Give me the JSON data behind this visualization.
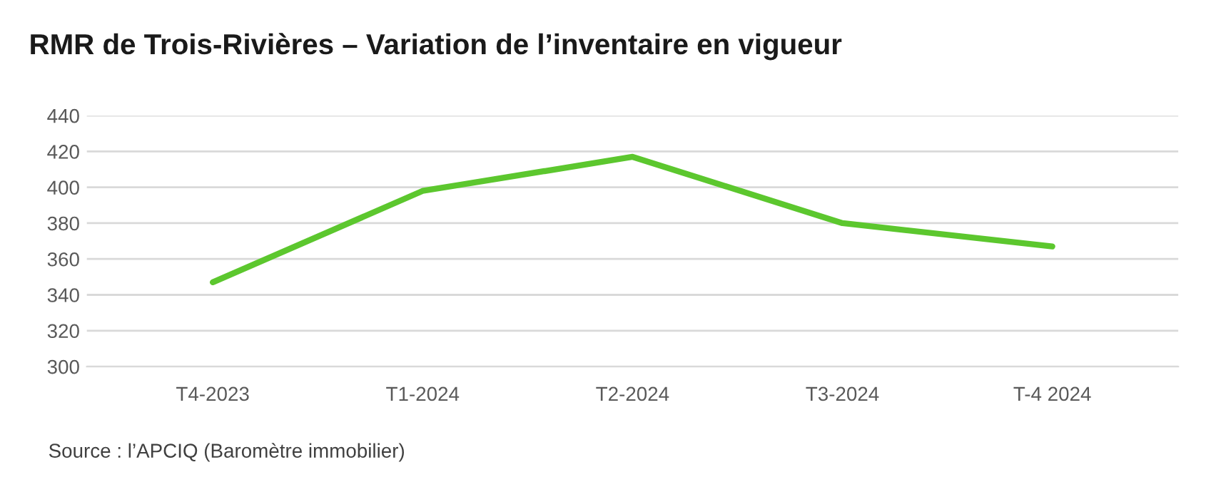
{
  "chart_data": {
    "type": "line",
    "title": "RMR de Trois-Rivières – Variation de l’inventaire en vigueur",
    "categories": [
      "T4-2023",
      "T1-2024",
      "T2-2024",
      "T3-2024",
      "T-4 2024"
    ],
    "series": [
      {
        "color": "#5cc72e",
        "values": [
          347,
          398,
          417,
          380,
          367
        ]
      }
    ],
    "ylim": [
      300,
      440
    ],
    "yticks": [
      300,
      320,
      340,
      360,
      380,
      400,
      420,
      440
    ],
    "grid": "y",
    "annotations": [
      "Source : l’APCIQ (Baromètre immobilier)"
    ]
  }
}
